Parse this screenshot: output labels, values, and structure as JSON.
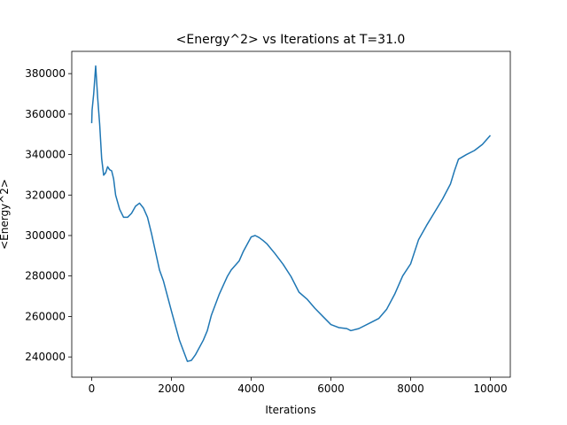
{
  "chart_data": {
    "type": "line",
    "title": "<Energy^2> vs Iterations at T=31.0",
    "xlabel": "Iterations",
    "ylabel": "<Energy^2>",
    "x": [
      0,
      10,
      50,
      100,
      150,
      200,
      250,
      300,
      350,
      400,
      450,
      500,
      550,
      600,
      700,
      800,
      900,
      1000,
      1100,
      1200,
      1300,
      1400,
      1500,
      1700,
      1800,
      2000,
      2200,
      2400,
      2500,
      2600,
      2800,
      2900,
      3000,
      3200,
      3400,
      3500,
      3700,
      3800,
      4000,
      4100,
      4200,
      4300,
      4400,
      4600,
      4800,
      5000,
      5200,
      5400,
      5600,
      5800,
      6000,
      6200,
      6400,
      6500,
      6700,
      7000,
      7200,
      7400,
      7600,
      7800,
      8000,
      8200,
      8400,
      8600,
      8800,
      9000,
      9100,
      9200,
      9400,
      9600,
      9800,
      10000
    ],
    "series": [
      {
        "name": "<Energy^2>",
        "color": "#1f77b4",
        "values": [
          355500,
          362000,
          370000,
          383800,
          368000,
          355000,
          338000,
          329800,
          331000,
          334000,
          332500,
          332000,
          328000,
          320000,
          313000,
          309000,
          309000,
          311000,
          314500,
          316000,
          313500,
          309000,
          301000,
          283000,
          277500,
          262700,
          248300,
          237800,
          238300,
          241000,
          248300,
          253000,
          260500,
          271000,
          279700,
          283000,
          287500,
          292000,
          299300,
          300000,
          299000,
          297500,
          295800,
          291000,
          285800,
          279700,
          272000,
          268600,
          264000,
          260000,
          256000,
          254500,
          254000,
          253000,
          254000,
          257000,
          259000,
          263600,
          271000,
          280000,
          286000,
          298000,
          305000,
          311500,
          318000,
          325500,
          332000,
          337700,
          340000,
          342000,
          345000,
          349500
        ]
      }
    ],
    "xlim": [
      -500,
      10500
    ],
    "ylim": [
      230000,
      391000
    ],
    "xticks": [
      0,
      2000,
      4000,
      6000,
      8000,
      10000
    ],
    "yticks": [
      240000,
      260000,
      280000,
      300000,
      320000,
      340000,
      360000,
      380000
    ]
  }
}
